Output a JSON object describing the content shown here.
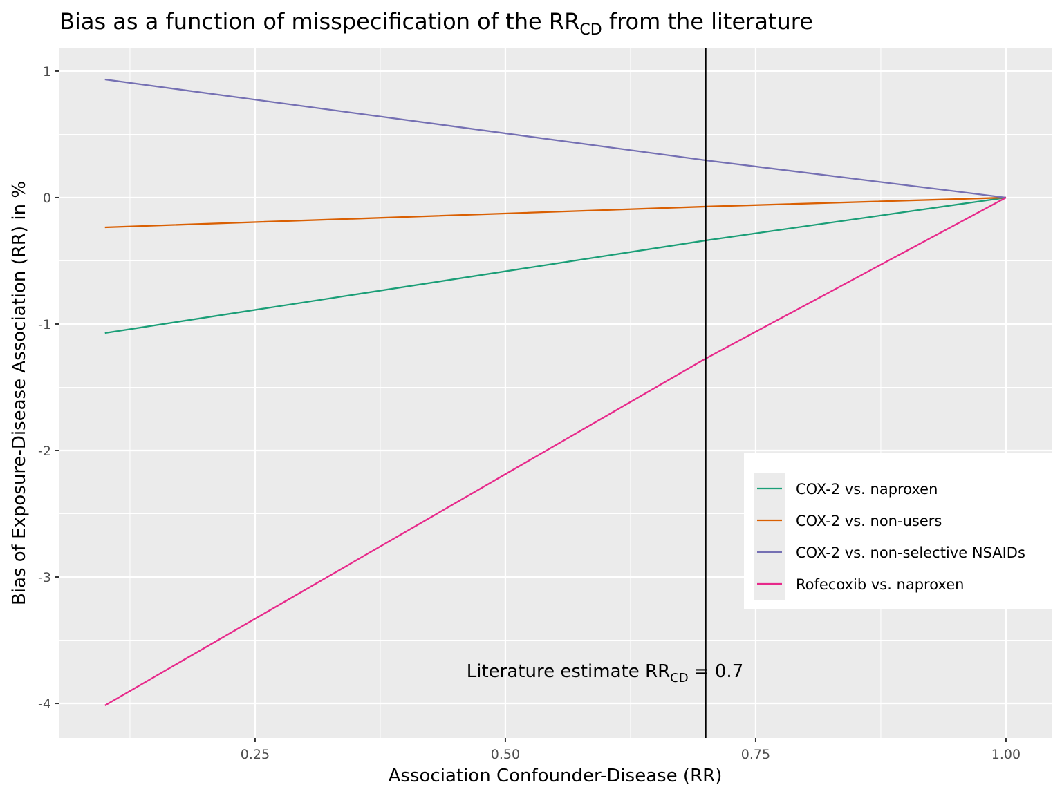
{
  "chart_data": {
    "type": "line",
    "title": {
      "main": "Bias as a function of misspecification of the RR",
      "sub": "CD",
      "end": " from the literature"
    },
    "x_label": "Association Confounder-Disease (RR)",
    "y_label": "Bias of Exposure-Disease Association (RR) in %",
    "x": [
      0.1,
      0.7,
      1.0
    ],
    "series": [
      {
        "name": "COX-2 vs. naproxen",
        "color": "#1b9e77",
        "values": [
          -1.071,
          -0.339,
          0
        ]
      },
      {
        "name": "COX-2 vs. non-users",
        "color": "#d95f02",
        "values": [
          -0.235,
          -0.071,
          0
        ]
      },
      {
        "name": "COX-2 vs. non-selective NSAIDs",
        "color": "#7570b3",
        "values": [
          0.934,
          0.295,
          0
        ]
      },
      {
        "name": "Rofecoxib vs. naproxen",
        "color": "#e7298a",
        "values": [
          -4.016,
          -1.273,
          0
        ]
      }
    ],
    "vline": 0.7,
    "annotation": {
      "main": "Literature estimate RR",
      "sub": "CD",
      "end": " = 0.7"
    },
    "xlim": [
      0.0546,
      1.0463
    ],
    "ylim": [
      -4.273,
      1.18
    ],
    "xticks": [
      {
        "value": 0.25,
        "label": "0.25"
      },
      {
        "value": 0.5,
        "label": "0.50"
      },
      {
        "value": 0.75,
        "label": "0.75"
      },
      {
        "value": 1.0,
        "label": "1.00"
      }
    ],
    "yticks": [
      1,
      0,
      -1,
      -2,
      -3,
      -4
    ],
    "grid": true,
    "legend": "right"
  }
}
